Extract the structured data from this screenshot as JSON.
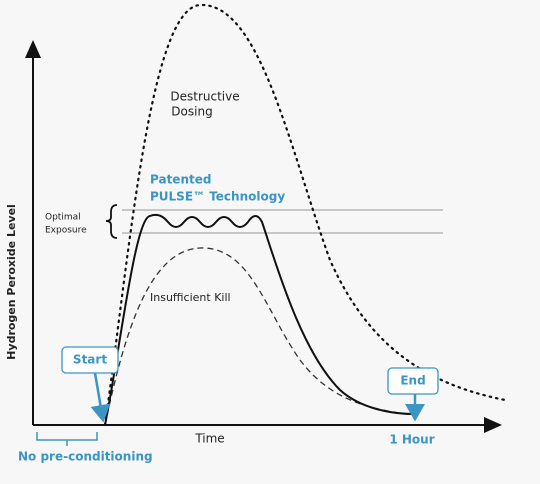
{
  "diagram": {
    "y_axis_label": "Hydrogen Peroxide Level",
    "x_axis_label": "Time",
    "destructive": [
      "Destructive",
      "Dosing"
    ],
    "pulse": [
      "Patented",
      "PULSE™ Technology"
    ],
    "optimal": [
      "Optimal",
      "Exposure"
    ],
    "insufficient": "Insufficient Kill",
    "start": "Start",
    "end": "End",
    "end_time": "1 Hour",
    "no_preconditioning": "No pre-conditioning"
  }
}
